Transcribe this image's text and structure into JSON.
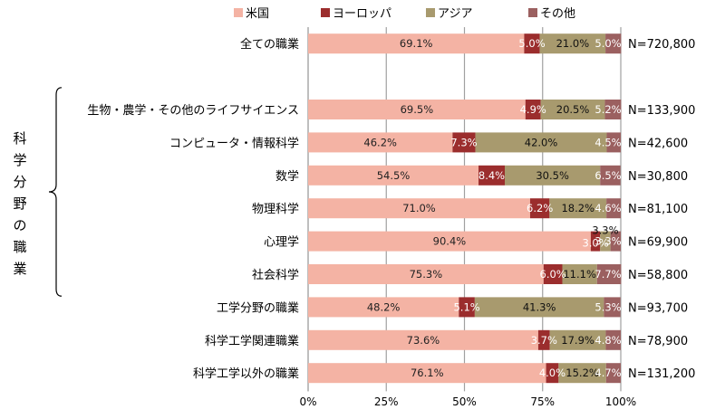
{
  "chart_data": {
    "type": "bar",
    "orientation": "horizontal",
    "stacked": true,
    "percent": true,
    "xlim": [
      0,
      100
    ],
    "xticks": [
      "0%",
      "25%",
      "50%",
      "75%",
      "100%"
    ],
    "grid": true,
    "legend_position": "top",
    "series": [
      {
        "name": "米国",
        "color": "#f4b3a4"
      },
      {
        "name": "ヨーロッパ",
        "color": "#9b2d2d"
      },
      {
        "name": "アジア",
        "color": "#a89a6e"
      },
      {
        "name": "その他",
        "color": "#9b6060"
      }
    ],
    "group_label": [
      "科",
      "学",
      "分",
      "野",
      "の",
      "職",
      "業"
    ],
    "rows": [
      {
        "category": "全ての職業",
        "values": [
          69.1,
          5.0,
          21.0,
          5.0
        ],
        "labels": [
          "69.1%",
          "5.0%",
          "21.0%",
          "5.0%"
        ],
        "n": "N=720,800"
      },
      {
        "category": "",
        "values": null,
        "labels": null,
        "n": ""
      },
      {
        "category": "生物・農学・その他のライフサイエンス",
        "values": [
          69.5,
          4.9,
          20.5,
          5.2
        ],
        "labels": [
          "69.5%",
          "4.9%",
          "20.5%",
          "5.2%"
        ],
        "n": "N=133,900"
      },
      {
        "category": "コンピュータ・情報科学",
        "values": [
          46.2,
          7.3,
          42.0,
          4.5
        ],
        "labels": [
          "46.2%",
          "7.3%",
          "42.0%",
          "4.5%"
        ],
        "n": "N=42,600"
      },
      {
        "category": "数学",
        "values": [
          54.5,
          8.4,
          30.5,
          6.5
        ],
        "labels": [
          "54.5%",
          "8.4%",
          "30.5%",
          "6.5%"
        ],
        "n": "N=30,800"
      },
      {
        "category": "物理科学",
        "values": [
          71.0,
          6.2,
          18.2,
          4.6
        ],
        "labels": [
          "71.0%",
          "6.2%",
          "18.2%",
          "4.6%"
        ],
        "n": "N=81,100"
      },
      {
        "category": "心理学",
        "values": [
          90.4,
          3.0,
          3.3,
          3.3
        ],
        "labels": [
          "90.4%",
          "3.0%",
          "3.3%",
          "3.3%"
        ],
        "n": "N=69,900"
      },
      {
        "category": "社会科学",
        "values": [
          75.3,
          6.0,
          11.1,
          7.7
        ],
        "labels": [
          "75.3%",
          "6.0%",
          "11.1%",
          "7.7%"
        ],
        "n": "N=58,800"
      },
      {
        "category": "工学分野の職業",
        "values": [
          48.2,
          5.1,
          41.3,
          5.3
        ],
        "labels": [
          "48.2%",
          "5.1%",
          "41.3%",
          "5.3%"
        ],
        "n": "N=93,700"
      },
      {
        "category": "科学工学関連職業",
        "values": [
          73.6,
          3.7,
          17.9,
          4.8
        ],
        "labels": [
          "73.6%",
          "3.7%",
          "17.9%",
          "4.8%"
        ],
        "n": "N=78,900"
      },
      {
        "category": "科学工学以外の職業",
        "values": [
          76.1,
          4.0,
          15.2,
          4.7
        ],
        "labels": [
          "76.1%",
          "4.0%",
          "15.2%",
          "4.7%"
        ],
        "n": "N=131,200"
      }
    ]
  }
}
